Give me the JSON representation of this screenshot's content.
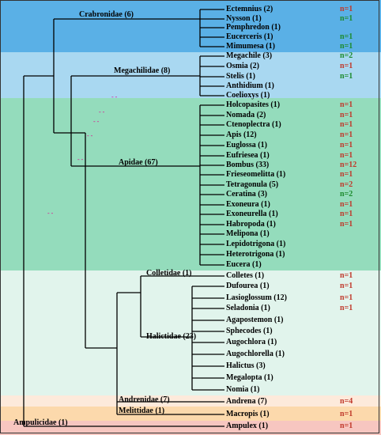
{
  "colors": {
    "crabronidae_band": "#5ab0e6",
    "megachilidae_band": "#a9d8f1",
    "apidae_band": "#94dcbc",
    "colletidae_halictidae_band": "#e1f4ec",
    "andrenidae_band": "#fdeadb",
    "melittidae_band": "#fcd9ac",
    "ampulicidae_band": "#f7c6c0",
    "count_green": "#1d8b2d",
    "count_red": "#c0392b",
    "tick_mark": "#e2008a",
    "line": "#000000"
  },
  "families": [
    {
      "id": "crabronidae",
      "label": "Crabronidae (6)"
    },
    {
      "id": "megachilidae",
      "label": "Megachilidae (8)"
    },
    {
      "id": "apidae",
      "label": "Apidae (67)"
    },
    {
      "id": "colletidae",
      "label": "Colletidae (1)"
    },
    {
      "id": "halictidae",
      "label": "Halictidae (23)"
    },
    {
      "id": "andrenidae",
      "label": "Andrenidae (7)"
    },
    {
      "id": "melittidae",
      "label": "Melittidae (1)"
    },
    {
      "id": "ampulicidae",
      "label": "Ampulicidae (1)"
    }
  ],
  "genera": [
    {
      "label": "Ectemnius (2)",
      "n": "n=1",
      "nc": "red"
    },
    {
      "label": "Nysson (1)",
      "n": "n=1",
      "nc": "green"
    },
    {
      "label": "Pemphredon (1)",
      "n": "",
      "nc": ""
    },
    {
      "label": "Eucerceris (1)",
      "n": "n=1",
      "nc": "green"
    },
    {
      "label": "Mimumesa (1)",
      "n": "n=1",
      "nc": "green"
    },
    {
      "label": "Megachile (3)",
      "n": "n=2",
      "nc": "green"
    },
    {
      "label": "Osmia (2)",
      "n": "n=1",
      "nc": "red"
    },
    {
      "label": "Stelis (1)",
      "n": "n=1",
      "nc": "green"
    },
    {
      "label": "Anthidium (1)",
      "n": "",
      "nc": ""
    },
    {
      "label": "Coelioxys (1)",
      "n": "",
      "nc": ""
    },
    {
      "label": "Holcopasites (1)",
      "n": "n=1",
      "nc": "red"
    },
    {
      "label": "Nomada (2)",
      "n": "n=1",
      "nc": "red"
    },
    {
      "label": "Ctenoplectra (1)",
      "n": "n=1",
      "nc": "red"
    },
    {
      "label": "Apis (12)",
      "n": "n=1",
      "nc": "red"
    },
    {
      "label": "Euglossa (1)",
      "n": "n=1",
      "nc": "red"
    },
    {
      "label": "Eufriesea (1)",
      "n": "n=1",
      "nc": "red"
    },
    {
      "label": "Bombus (33)",
      "n": "n=12",
      "nc": "red"
    },
    {
      "label": "Frieseomelitta (1)",
      "n": "n=1",
      "nc": "red"
    },
    {
      "label": "Tetragonula (5)",
      "n": "n=2",
      "nc": "red"
    },
    {
      "label": "Ceratina (3)",
      "n": "n=2",
      "nc": "green"
    },
    {
      "label": "Exoneura (1)",
      "n": "n=1",
      "nc": "red"
    },
    {
      "label": "Exoneurella (1)",
      "n": "n=1",
      "nc": "red"
    },
    {
      "label": "Habropoda (1)",
      "n": "n=1",
      "nc": "red"
    },
    {
      "label": "Melipona (1)",
      "n": "",
      "nc": ""
    },
    {
      "label": "Lepidotrigona (1)",
      "n": "",
      "nc": ""
    },
    {
      "label": "Heterotrigona (1)",
      "n": "",
      "nc": ""
    },
    {
      "label": "Eucera (1)",
      "n": "",
      "nc": ""
    },
    {
      "label": "Colletes (1)",
      "n": "n=1",
      "nc": "red"
    },
    {
      "label": "Dufourea (1)",
      "n": "n=1",
      "nc": "red"
    },
    {
      "label": "Lasioglossum (12)",
      "n": "n=1",
      "nc": "red"
    },
    {
      "label": "Seladonia (1)",
      "n": "n=1",
      "nc": "red"
    },
    {
      "label": "Agapostemon (1)",
      "n": "",
      "nc": ""
    },
    {
      "label": "Sphecodes (1)",
      "n": "",
      "nc": ""
    },
    {
      "label": "Augochlora (1)",
      "n": "",
      "nc": ""
    },
    {
      "label": "Augochlorella (1)",
      "n": "",
      "nc": ""
    },
    {
      "label": "Halictus (3)",
      "n": "",
      "nc": ""
    },
    {
      "label": "Megalopta (1)",
      "n": "",
      "nc": ""
    },
    {
      "label": "Nomia (1)",
      "n": "",
      "nc": ""
    },
    {
      "label": "Andrena (7)",
      "n": "n=4",
      "nc": "red"
    },
    {
      "label": "Macropis (1)",
      "n": "n=1",
      "nc": "red"
    },
    {
      "label": "Ampulex (1)",
      "n": "n=1",
      "nc": "red"
    }
  ]
}
